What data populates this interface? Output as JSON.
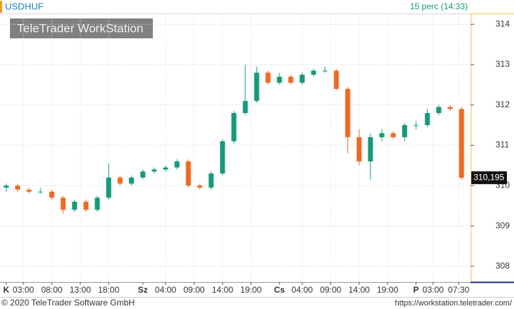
{
  "chart_data": {
    "type": "candlestick",
    "title": "USDHUF",
    "interval": "15 perc (14:33)",
    "watermark": "TeleTrader WorkStation",
    "footer_left": "© 2020 TeleTrader Software GmbH",
    "footer_right": "https://workstation.teletrader.com/",
    "up_color": "#169a7a",
    "down_color": "#ee6a24",
    "grid": true,
    "x": [
      0,
      2,
      4,
      6,
      8,
      10,
      12,
      14,
      16,
      18,
      20,
      22,
      24,
      26,
      28,
      30,
      32,
      34,
      36,
      38,
      40,
      42,
      44,
      46,
      48,
      50,
      52,
      54,
      56,
      58,
      60,
      62,
      64,
      66,
      68,
      70,
      72,
      74,
      76,
      78,
      80
    ],
    "open": [
      309.95,
      310.0,
      309.9,
      309.85,
      309.85,
      309.7,
      309.4,
      309.6,
      309.4,
      309.7,
      310.2,
      310.05,
      310.2,
      310.35,
      310.4,
      310.45,
      310.6,
      310.0,
      309.95,
      310.3,
      311.1,
      311.8,
      312.1,
      312.8,
      312.55,
      312.7,
      312.55,
      312.75,
      312.85,
      312.85,
      312.4,
      311.2,
      310.6,
      311.2,
      311.3,
      311.2,
      311.5,
      311.5,
      311.8,
      311.95,
      311.9
    ],
    "high": [
      310.05,
      310.05,
      309.95,
      309.95,
      309.9,
      309.75,
      309.65,
      309.65,
      309.75,
      310.55,
      310.25,
      310.25,
      310.4,
      310.45,
      310.5,
      310.65,
      310.65,
      310.05,
      310.35,
      311.15,
      311.85,
      313.0,
      312.95,
      312.85,
      312.8,
      312.75,
      312.8,
      312.9,
      312.95,
      312.9,
      312.45,
      311.4,
      311.3,
      311.4,
      311.35,
      311.55,
      311.6,
      311.9,
      312.0,
      312.0,
      311.95
    ],
    "low": [
      309.85,
      309.85,
      309.8,
      309.8,
      309.65,
      309.3,
      309.35,
      309.35,
      309.35,
      309.65,
      310.0,
      310.0,
      310.15,
      310.3,
      310.35,
      310.4,
      309.95,
      309.9,
      309.9,
      310.25,
      311.05,
      311.75,
      312.05,
      312.5,
      312.5,
      312.5,
      312.5,
      312.7,
      312.8,
      312.35,
      310.8,
      310.5,
      310.15,
      311.1,
      311.15,
      311.1,
      311.4,
      311.45,
      311.75,
      311.85,
      310.15
    ],
    "close": [
      310.0,
      309.9,
      309.85,
      309.85,
      309.7,
      309.4,
      309.6,
      309.4,
      309.7,
      310.2,
      310.05,
      310.2,
      310.35,
      310.4,
      310.45,
      310.6,
      310.0,
      309.95,
      310.3,
      311.1,
      311.8,
      312.1,
      312.8,
      312.55,
      312.7,
      312.55,
      312.75,
      312.85,
      312.85,
      312.4,
      311.2,
      310.6,
      311.2,
      311.3,
      311.2,
      311.5,
      311.5,
      311.8,
      311.95,
      311.9,
      310.195
    ],
    "last_price": {
      "value": 310.195,
      "label": "310,195"
    },
    "xlim": [
      -1.1,
      81.6
    ],
    "xticks": [
      {
        "value": 3,
        "label": "03:00"
      },
      {
        "value": 8,
        "label": "08:00"
      },
      {
        "value": 13,
        "label": "13:00"
      },
      {
        "value": 18,
        "label": "18:00"
      },
      {
        "value": 28,
        "label": "04:00"
      },
      {
        "value": 33,
        "label": "09:00"
      },
      {
        "value": 38,
        "label": "14:00"
      },
      {
        "value": 43,
        "label": "19:00"
      },
      {
        "value": 52,
        "label": "04:00"
      },
      {
        "value": 57,
        "label": "09:00"
      },
      {
        "value": 62,
        "label": "14:00"
      },
      {
        "value": 67,
        "label": "19:00"
      },
      {
        "value": 75,
        "label": "03:00"
      },
      {
        "value": 79.5,
        "label": "07:30"
      }
    ],
    "day_ticks": [
      {
        "value": 0,
        "label": "K"
      },
      {
        "value": 24,
        "label": "Sz"
      },
      {
        "value": 48,
        "label": "Cs"
      },
      {
        "value": 72,
        "label": "P"
      }
    ],
    "ylim": [
      307.61,
      314.25
    ],
    "yticks": [
      308,
      309,
      310,
      311,
      312,
      313,
      314
    ]
  }
}
